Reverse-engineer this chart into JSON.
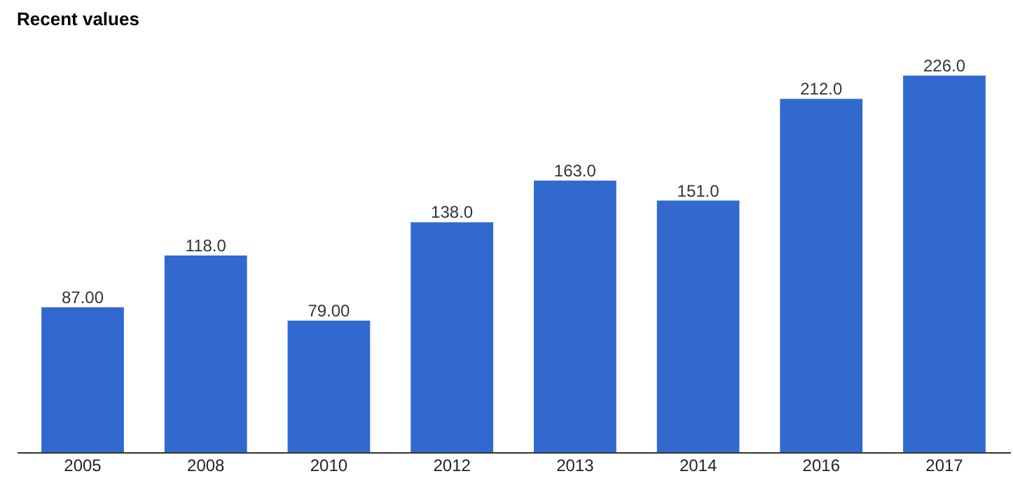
{
  "chart_data": {
    "type": "bar",
    "title": "Recent values",
    "categories": [
      "2005",
      "2008",
      "2010",
      "2012",
      "2013",
      "2014",
      "2016",
      "2017"
    ],
    "values": [
      87,
      118,
      79,
      138,
      163,
      151,
      212,
      226
    ],
    "value_labels": [
      "87.00",
      "118.0",
      "79.00",
      "138.0",
      "163.0",
      "151.0",
      "212.0",
      "226.0"
    ],
    "color": "#3169cf",
    "grid": false
  }
}
